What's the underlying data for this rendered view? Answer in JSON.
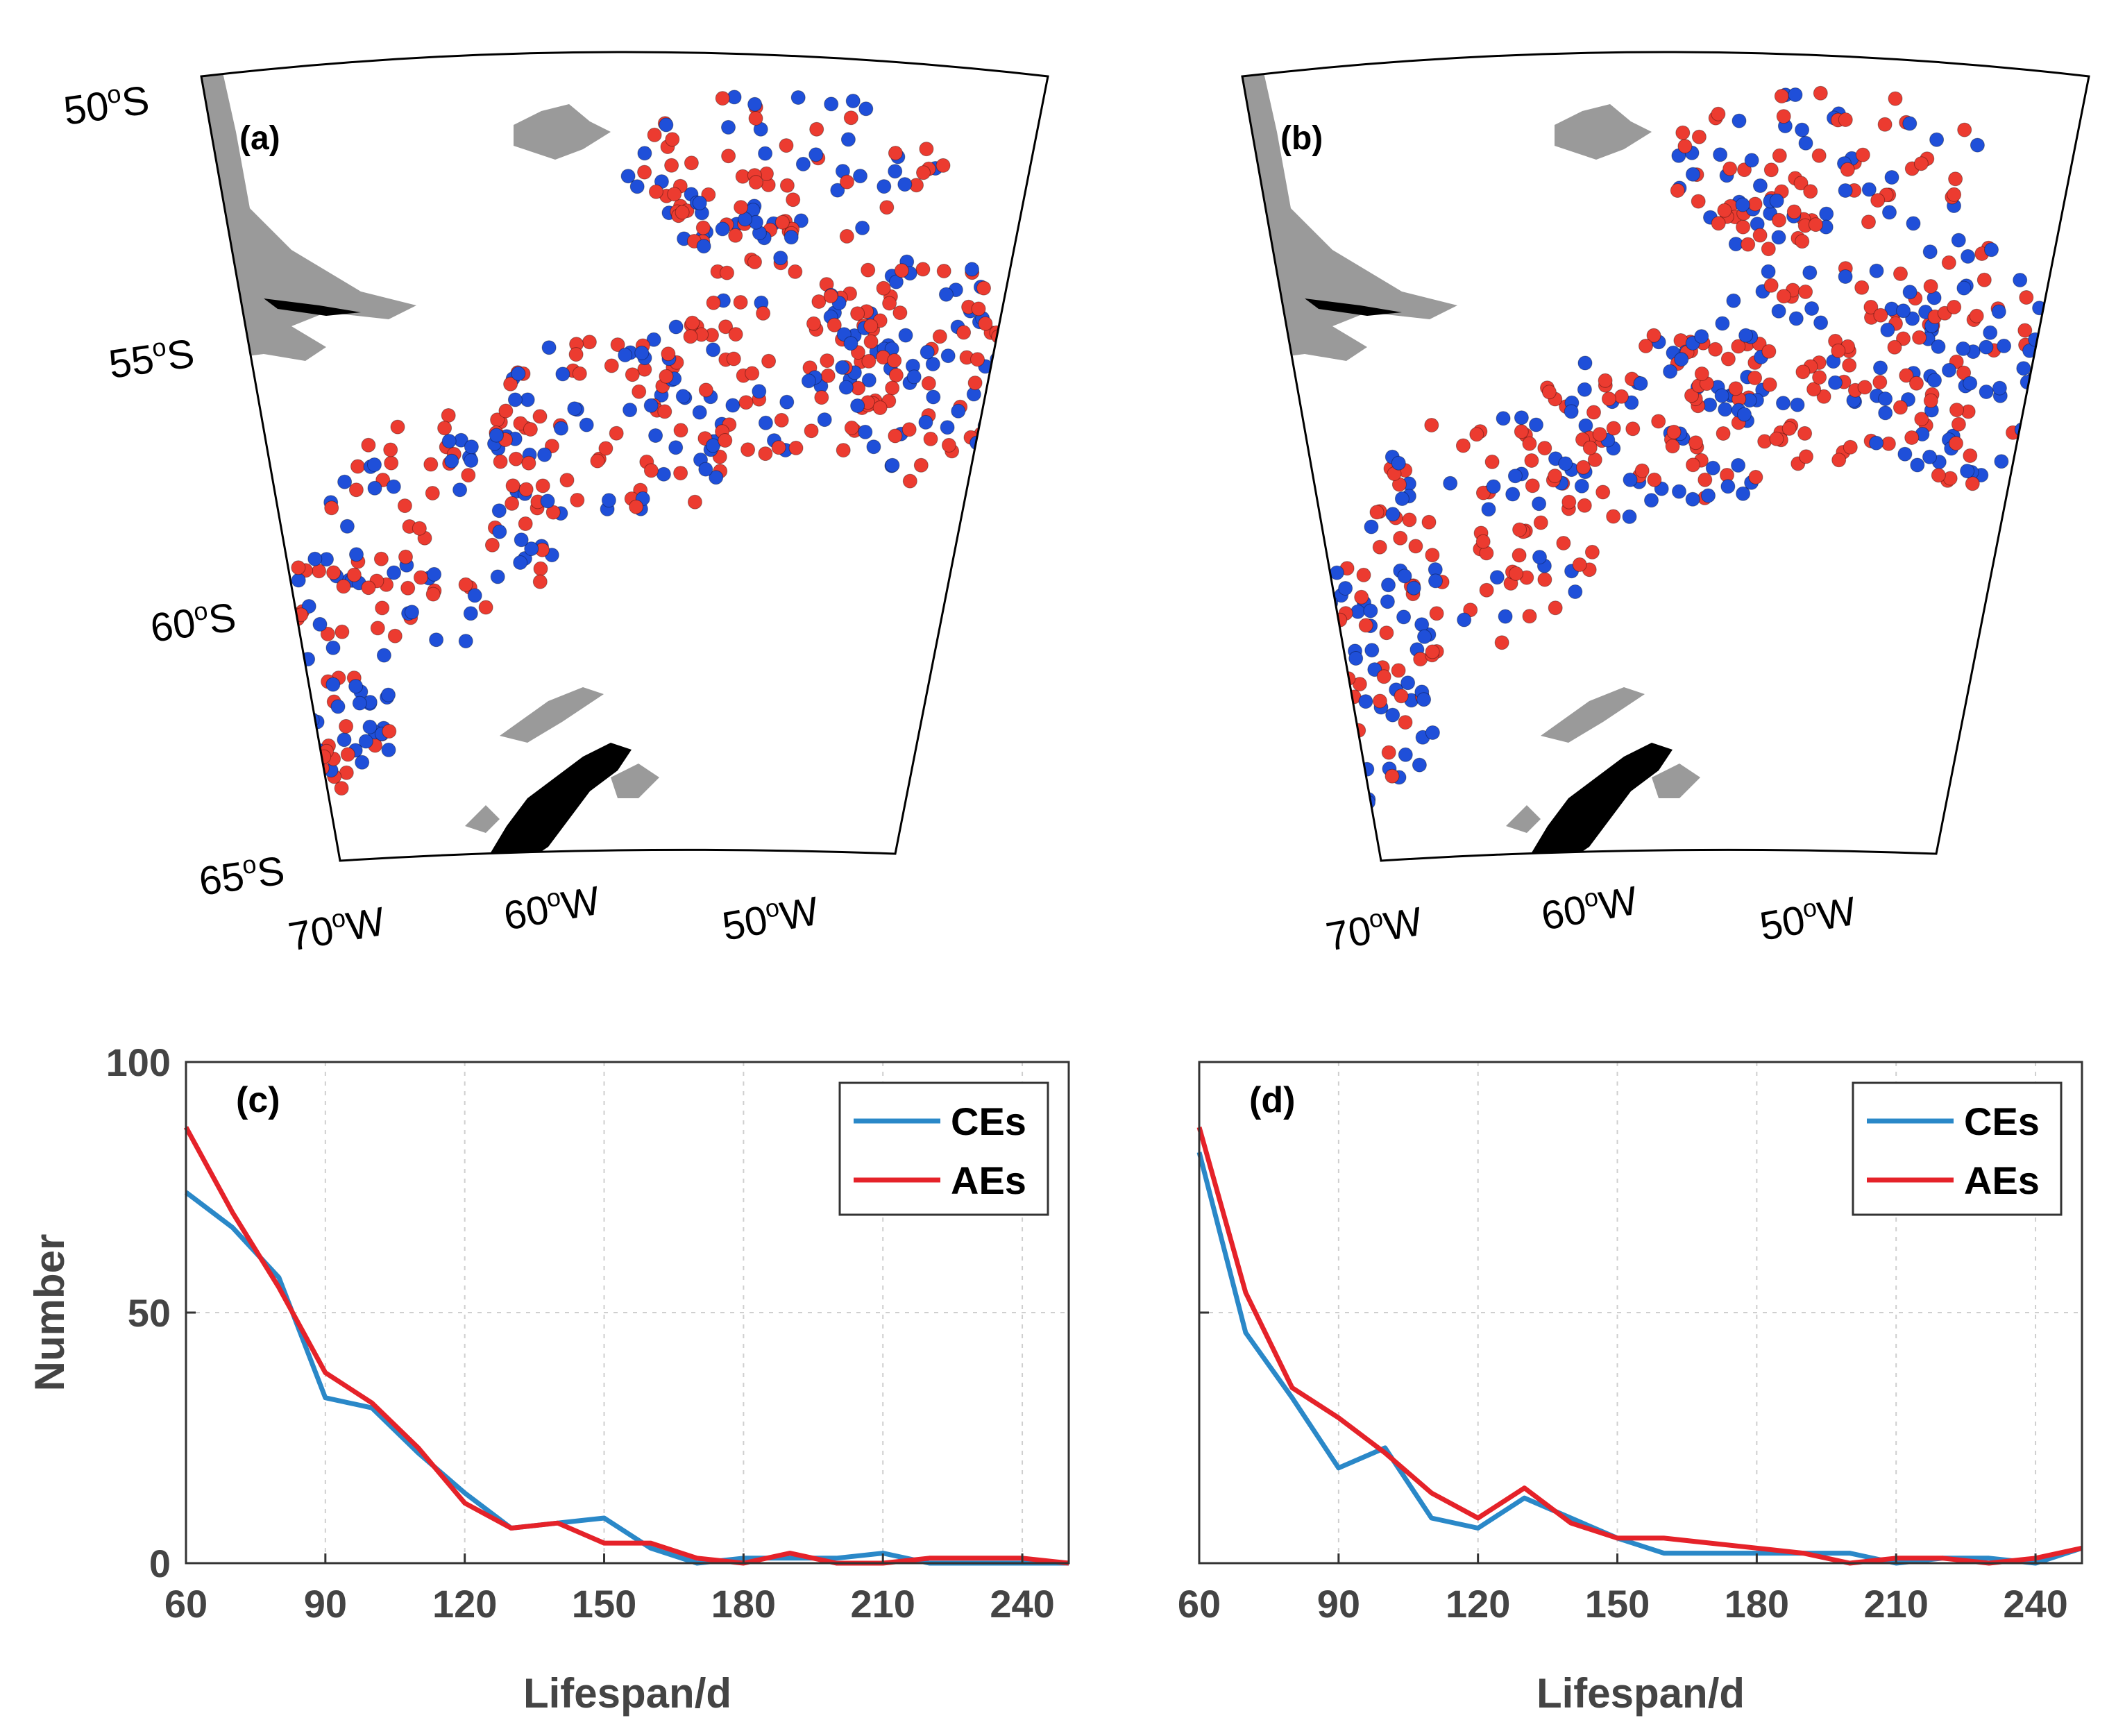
{
  "colors": {
    "ce": "#1f4fd9",
    "ae": "#ec3b30",
    "ce_line": "#2a88c8",
    "ae_line": "#e52229",
    "land_grey": "#9a9a9a",
    "land_black": "#000000",
    "grid": "#cfcfcf"
  },
  "maps": [
    {
      "id": "a",
      "label": "(a)",
      "lat_labels": [
        {
          "text": "50",
          "sup": "o",
          "hemi": "S"
        },
        {
          "text": "55",
          "sup": "o",
          "hemi": "S"
        },
        {
          "text": "60",
          "sup": "o",
          "hemi": "S"
        },
        {
          "text": "65",
          "sup": "o",
          "hemi": "S"
        }
      ],
      "lon_labels": [
        {
          "text": "70",
          "sup": "o",
          "hemi": "W"
        },
        {
          "text": "60",
          "sup": "o",
          "hemi": "W"
        },
        {
          "text": "50",
          "sup": "o",
          "hemi": "W"
        }
      ],
      "seed": 11
    },
    {
      "id": "b",
      "label": "(b)",
      "lat_labels": [],
      "lon_labels": [
        {
          "text": "70",
          "sup": "o",
          "hemi": "W"
        },
        {
          "text": "60",
          "sup": "o",
          "hemi": "W"
        },
        {
          "text": "50",
          "sup": "o",
          "hemi": "W"
        }
      ],
      "seed": 29
    }
  ],
  "chart_data": [
    {
      "type": "line",
      "panel": "(c)",
      "xlabel": "Lifespan/d",
      "ylabel": "Number",
      "xlim": [
        60,
        250
      ],
      "ylim": [
        0,
        100
      ],
      "xticks": [
        60,
        90,
        120,
        150,
        180,
        210,
        240
      ],
      "yticks": [
        0,
        50,
        100
      ],
      "grid": true,
      "legend_position": "top-right",
      "x": [
        60,
        70,
        80,
        90,
        100,
        110,
        120,
        130,
        140,
        150,
        160,
        170,
        180,
        190,
        200,
        210,
        220,
        230,
        240,
        250
      ],
      "series": [
        {
          "name": "CEs",
          "values": [
            74,
            67,
            57,
            33,
            31,
            22,
            14,
            7,
            8,
            9,
            3,
            0,
            1,
            1,
            1,
            2,
            0,
            0,
            0,
            0
          ]
        },
        {
          "name": "AEs",
          "values": [
            87,
            70,
            55,
            38,
            32,
            23,
            12,
            7,
            8,
            4,
            4,
            1,
            0,
            2,
            0,
            0,
            1,
            1,
            1,
            0
          ]
        }
      ]
    },
    {
      "type": "line",
      "panel": "(d)",
      "xlabel": "Lifespan/d",
      "ylabel": "",
      "xlim": [
        60,
        250
      ],
      "ylim": [
        0,
        100
      ],
      "xticks": [
        60,
        90,
        120,
        150,
        180,
        210,
        240
      ],
      "yticks": [
        0,
        50,
        100
      ],
      "grid": true,
      "legend_position": "top-right",
      "x": [
        60,
        70,
        80,
        90,
        100,
        110,
        120,
        130,
        140,
        150,
        160,
        170,
        180,
        190,
        200,
        210,
        220,
        230,
        240,
        250
      ],
      "series": [
        {
          "name": "CEs",
          "values": [
            82,
            46,
            33,
            19,
            23,
            9,
            7,
            13,
            9,
            5,
            2,
            2,
            2,
            2,
            2,
            0,
            1,
            1,
            0,
            3
          ]
        },
        {
          "name": "AEs",
          "values": [
            87,
            54,
            35,
            29,
            22,
            14,
            9,
            15,
            8,
            5,
            5,
            4,
            3,
            2,
            0,
            1,
            1,
            0,
            1,
            3
          ]
        }
      ]
    }
  ]
}
